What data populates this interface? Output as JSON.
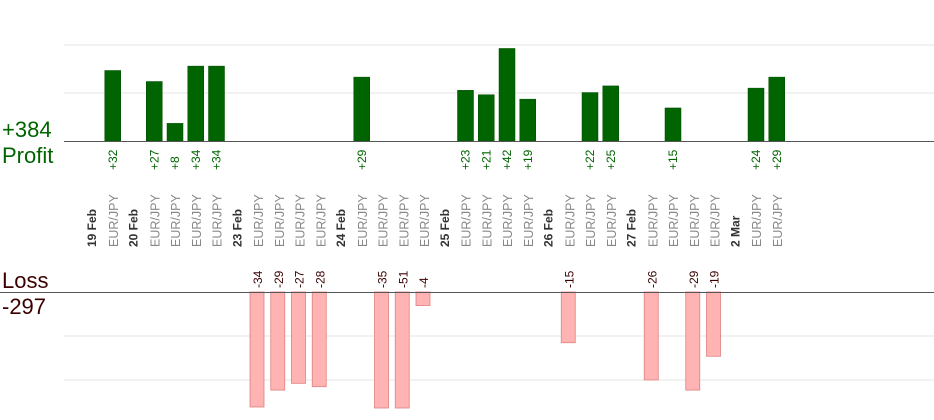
{
  "summary": {
    "profit_total": "+384",
    "profit_label": "Profit",
    "loss_label": "Loss",
    "loss_total": "-297"
  },
  "colors": {
    "profit_bar": "#006400",
    "profit_bar_edge": "#004d00",
    "profit_text": "#006400",
    "loss_bar": "#ffb3b3",
    "loss_bar_edge": "#e08080",
    "loss_text": "#3a0000",
    "label_text": "#888888",
    "date_text": "#333333",
    "gridline": "#e6e6e6",
    "axis": "#555555"
  },
  "chart_data": {
    "type": "bar",
    "profit_ylim": [
      0,
      64
    ],
    "loss_ylim": [
      -50,
      0
    ],
    "grid": true,
    "columns": [
      {
        "date": "19 Feb"
      },
      {
        "symbol": "EUR/JPY",
        "value": 32
      },
      {
        "date": "20 Feb"
      },
      {
        "symbol": "EUR/JPY",
        "value": 27
      },
      {
        "symbol": "EUR/JPY",
        "value": 8
      },
      {
        "symbol": "EUR/JPY",
        "value": 34
      },
      {
        "symbol": "EUR/JPY",
        "value": 34
      },
      {
        "date": "23 Feb"
      },
      {
        "symbol": "EUR/JPY",
        "value": -34
      },
      {
        "symbol": "EUR/JPY",
        "value": -29
      },
      {
        "symbol": "EUR/JPY",
        "value": -27
      },
      {
        "symbol": "EUR/JPY",
        "value": -28
      },
      {
        "date": "24 Feb"
      },
      {
        "symbol": "EUR/JPY",
        "value": 29
      },
      {
        "symbol": "EUR/JPY",
        "value": -35
      },
      {
        "symbol": "EUR/JPY",
        "value": -51
      },
      {
        "symbol": "EUR/JPY",
        "value": -4
      },
      {
        "date": "25 Feb"
      },
      {
        "symbol": "EUR/JPY",
        "value": 23
      },
      {
        "symbol": "EUR/JPY",
        "value": 21
      },
      {
        "symbol": "EUR/JPY",
        "value": 42
      },
      {
        "symbol": "EUR/JPY",
        "value": 19
      },
      {
        "date": "26 Feb"
      },
      {
        "symbol": "EUR/JPY",
        "value": -15
      },
      {
        "symbol": "EUR/JPY",
        "value": 22
      },
      {
        "symbol": "EUR/JPY",
        "value": 25
      },
      {
        "date": "27 Feb"
      },
      {
        "symbol": "EUR/JPY",
        "value": -26
      },
      {
        "symbol": "EUR/JPY",
        "value": 15
      },
      {
        "symbol": "EUR/JPY",
        "value": -29
      },
      {
        "symbol": "EUR/JPY",
        "value": -19
      },
      {
        "date": "2 Mar"
      },
      {
        "symbol": "EUR/JPY",
        "value": 24
      },
      {
        "symbol": "EUR/JPY",
        "value": 29
      }
    ]
  }
}
